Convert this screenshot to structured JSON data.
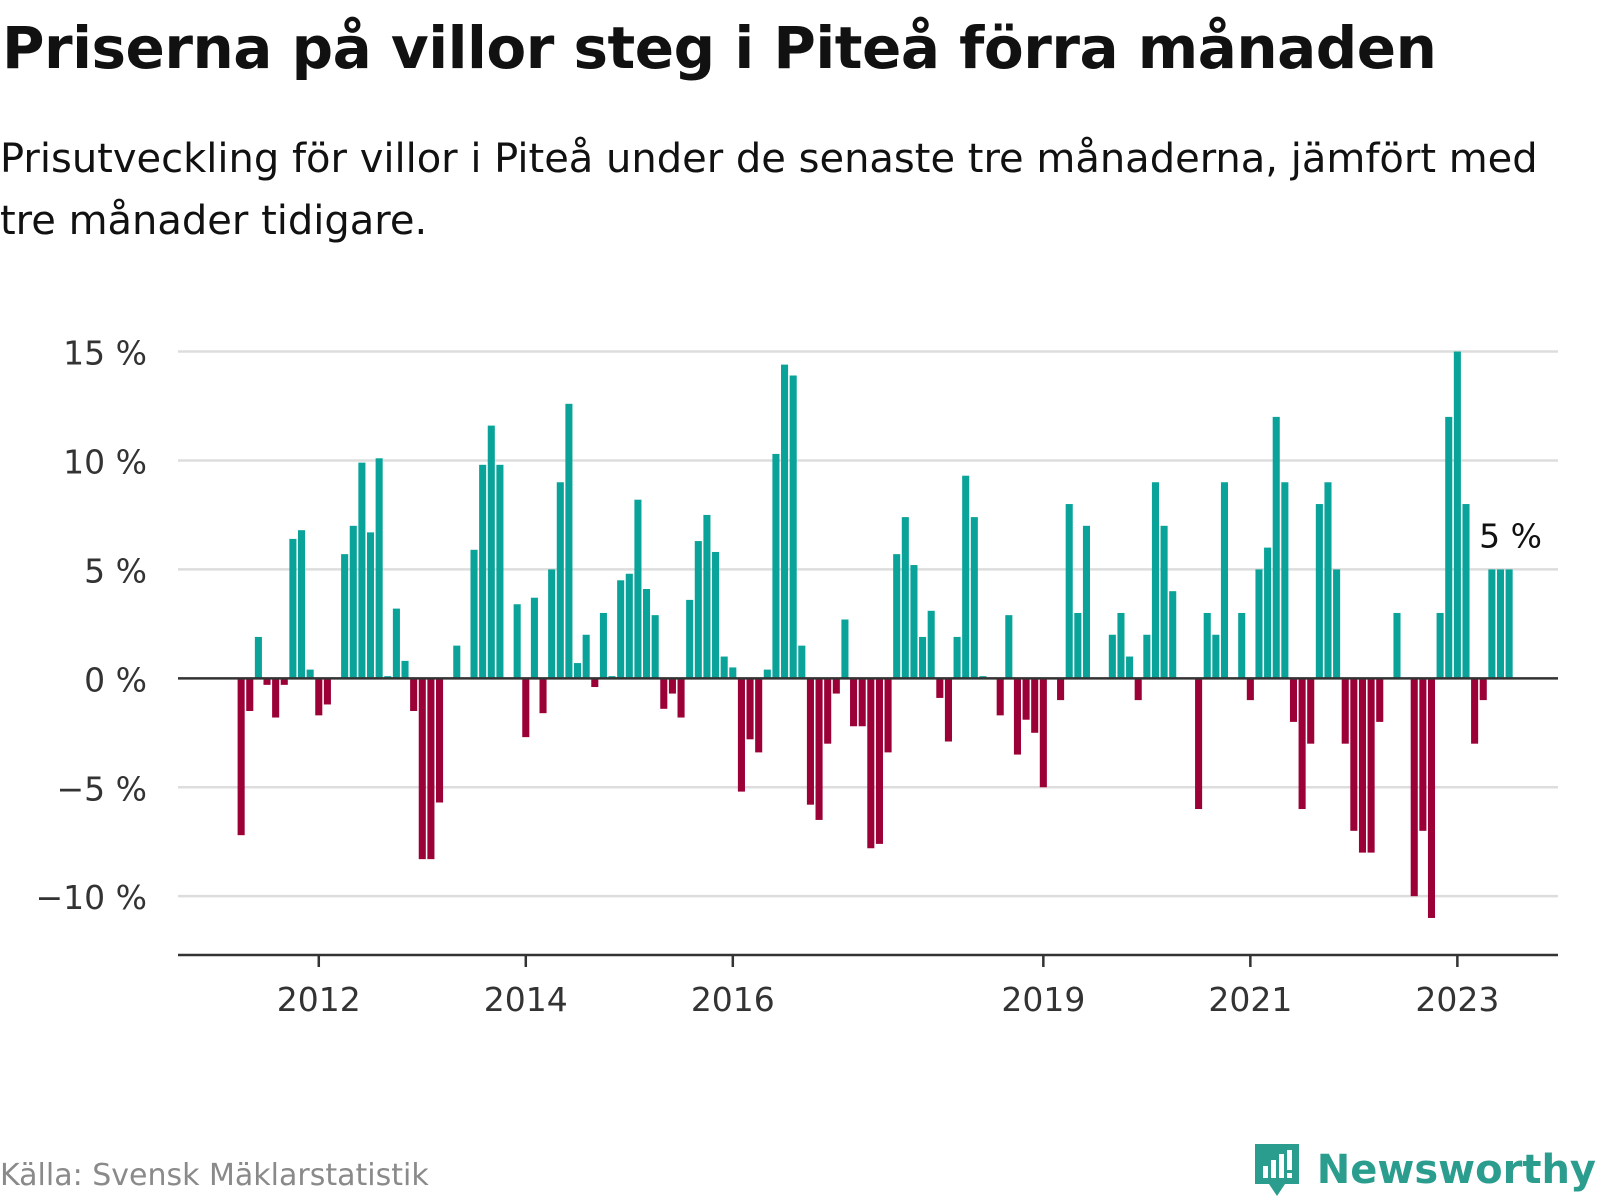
{
  "title": "Priserna på villor steg i Piteå förra månaden",
  "subtitle": "Prisutveckling för villor i Piteå under de senaste tre månaderna, jämfört med tre månader tidigare.",
  "source": "Källa: Svensk Mäklarstatistik",
  "brand": "Newsworthy",
  "colors": {
    "positive": "#0aa39a",
    "negative": "#9b0036",
    "grid": "#dddddd",
    "axis": "#333333",
    "brand": "#2a9d8f"
  },
  "chart_data": {
    "type": "bar",
    "start_year": 2011.25,
    "months_per_bar": 1,
    "values": [
      -7.2,
      -1.5,
      1.9,
      -0.3,
      -1.8,
      -0.3,
      6.4,
      6.8,
      0.4,
      -1.7,
      -1.2,
      0,
      5.7,
      7.0,
      9.9,
      6.7,
      10.1,
      0.1,
      3.2,
      0.8,
      -1.5,
      -8.3,
      -8.3,
      -5.7,
      0,
      1.5,
      0,
      5.9,
      9.8,
      11.6,
      9.8,
      0,
      3.4,
      -2.7,
      3.7,
      -1.6,
      5.0,
      9.0,
      12.6,
      0.7,
      2.0,
      -0.4,
      3.0,
      0.1,
      4.5,
      4.8,
      8.2,
      4.1,
      2.9,
      -1.4,
      -0.7,
      -1.8,
      3.6,
      6.3,
      7.5,
      5.8,
      1.0,
      0.5,
      -5.2,
      -2.8,
      -3.4,
      0.4,
      10.3,
      14.4,
      13.9,
      1.5,
      -5.8,
      -6.5,
      -3.0,
      -0.7,
      2.7,
      -2.2,
      -2.2,
      -7.8,
      -7.6,
      -3.4,
      5.7,
      7.4,
      5.2,
      1.9,
      3.1,
      -0.9,
      -2.9,
      1.9,
      9.3,
      7.4,
      0.1,
      0,
      -1.7,
      2.9,
      -3.5,
      -1.9,
      -2.5,
      -5.0,
      0,
      -1.0,
      8.0,
      3.0,
      7.0,
      0,
      0,
      2.0,
      3.0,
      1.0,
      -1.0,
      2.0,
      9.0,
      7.0,
      4.0,
      0,
      0,
      -6.0,
      3.0,
      2.0,
      9.0,
      0,
      3.0,
      -1.0,
      5.0,
      6.0,
      12.0,
      9.0,
      -2.0,
      -6.0,
      -3.0,
      8.0,
      9.0,
      5.0,
      -3.0,
      -7.0,
      -8.0,
      -8.0,
      -2.0,
      0,
      3.0,
      0,
      -10.0,
      -7.0,
      -11.0,
      3.0,
      12.0,
      15.0,
      8.0,
      -3.0,
      -1.0,
      5.0,
      5.0,
      5.0
    ],
    "y_ticks": [
      15,
      10,
      5,
      0,
      -5,
      -10
    ],
    "y_tick_labels": [
      "15 %",
      "10 %",
      "5 %",
      "0 %",
      "−5 %",
      "−10 %"
    ],
    "ylim": [
      -12.7,
      15.3
    ],
    "x_ticks": [
      2012,
      2014,
      2016,
      2019,
      2021,
      2023
    ],
    "x_tick_labels": [
      "2012",
      "2014",
      "2016",
      "2019",
      "2021",
      "2023"
    ],
    "x_range": [
      2010.64,
      2023.75
    ],
    "last_value_label": "5 %",
    "grid": true
  }
}
